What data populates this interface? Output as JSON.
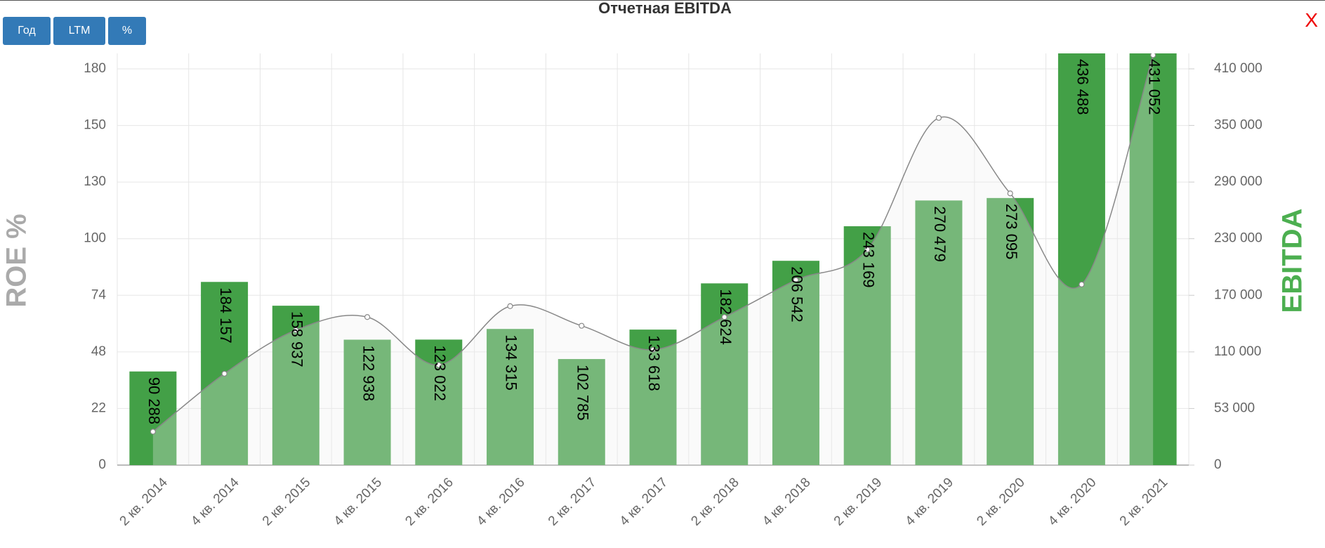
{
  "buttons": [
    "Год",
    "LTM",
    "%"
  ],
  "close": "X",
  "chart_data": {
    "type": "bar",
    "title": "Отчетная EBITDA",
    "y_label": "ROE %",
    "y2_label": "EBITDA",
    "categories": [
      "2 кв. 2014",
      "4 кв. 2014",
      "2 кв. 2015",
      "4 кв. 2015",
      "2 кв. 2016",
      "4 кв. 2016",
      "2 кв. 2017",
      "4 кв. 2017",
      "2 кв. 2018",
      "4 кв. 2018",
      "2 кв. 2019",
      "4 кв. 2019",
      "2 кв. 2020",
      "4 кв. 2020",
      "2 кв. 2021"
    ],
    "series": [
      {
        "type": "bar",
        "axis": "y2",
        "color": "#43a047",
        "values": [
          90288,
          184157,
          158937,
          122938,
          123022,
          134315,
          102785,
          133618,
          182624,
          206542,
          243169,
          270479,
          273095,
          436488,
          431052
        ],
        "value_labels": [
          "90 288",
          "184 157",
          "158 937",
          "122 938",
          "123 022",
          "134 315",
          "102 785",
          "133 618",
          "182 624",
          "206 542",
          "243 169",
          "270 479",
          "273 095",
          "436 488",
          "431 052"
        ]
      },
      {
        "type": "line",
        "axis": "y",
        "color": "#888888",
        "values": [
          13,
          38,
          58,
          64,
          42,
          69,
          60,
          49,
          64,
          81,
          95,
          154,
          124,
          79,
          188
        ]
      }
    ],
    "ylim": [
      0,
      189
    ],
    "yticks": [
      0,
      22,
      48,
      74,
      100,
      130,
      150,
      180
    ],
    "y2lim": [
      0,
      427000
    ],
    "y2ticks": [
      0,
      {
        "value": 53000,
        "label": "53 000"
      },
      {
        "value": 110000,
        "label": "110 000"
      },
      {
        "value": 170000,
        "label": "170 000"
      },
      {
        "value": 230000,
        "label": "230 000"
      },
      {
        "value": 290000,
        "label": "290 000"
      },
      {
        "value": 350000,
        "label": "350 000"
      },
      {
        "value": 410000,
        "label": "410 000"
      }
    ],
    "grid": true
  }
}
